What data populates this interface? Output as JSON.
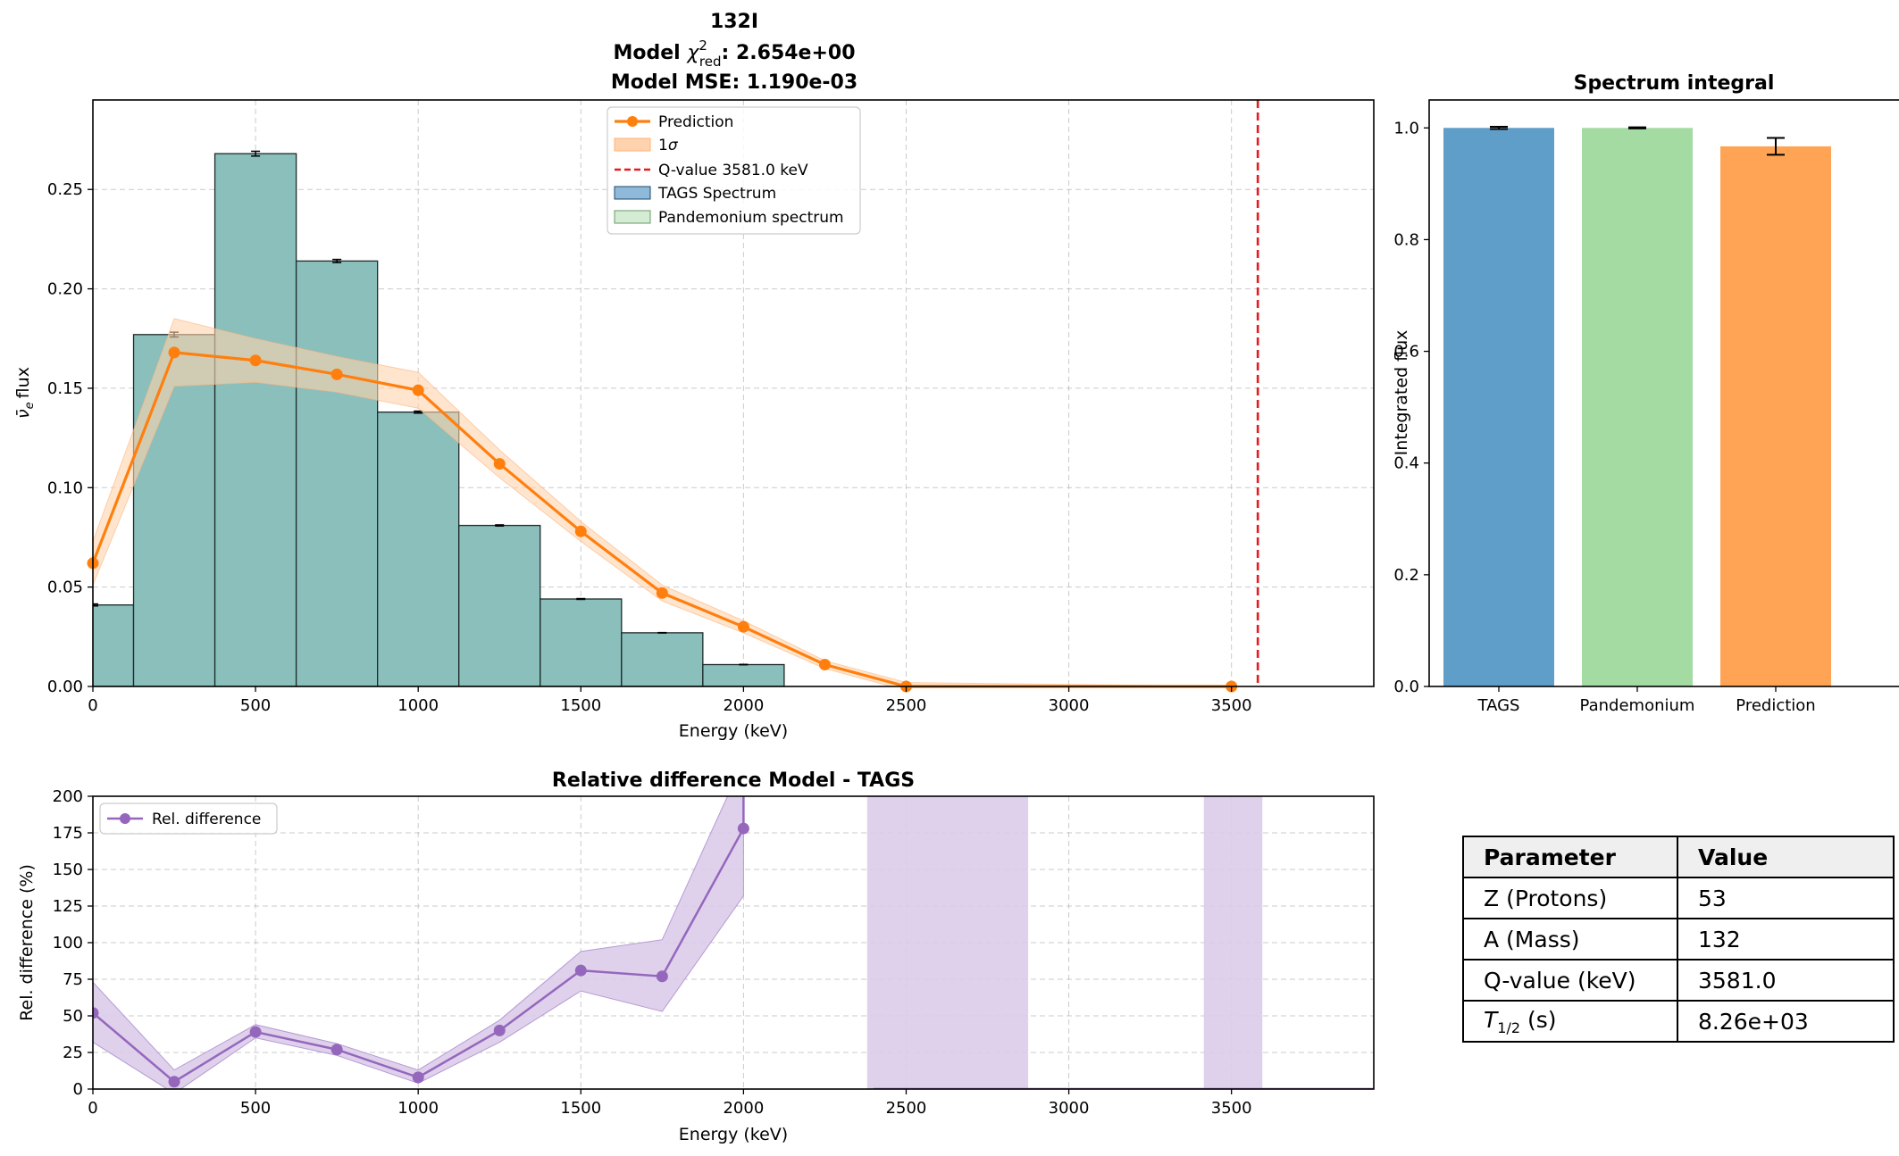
{
  "main": {
    "title_line1": "132I",
    "title_line2_prefix": "Model ",
    "title_line2_value": ": 2.654e+00",
    "title_line3": "Model MSE: 1.190e-03",
    "xlabel": "Energy (keV)",
    "ylabel": "flux",
    "legend": {
      "prediction": "Prediction",
      "sigma": "1",
      "qvalue": "Q-value 3581.0 keV",
      "tags": "TAGS Spectrum",
      "pandemonium": "Pandemonium spectrum"
    }
  },
  "bars": {
    "title": "Spectrum integral",
    "ylabel": "Integrated flux"
  },
  "rel": {
    "title": "Relative difference Model - TAGS",
    "xlabel": "Energy (keV)",
    "ylabel": "Rel. difference (%)",
    "legend": "Rel. difference"
  },
  "table": {
    "headers": [
      "Parameter",
      "Value"
    ],
    "rows": [
      {
        "param": "Z (Protons)",
        "value": "53"
      },
      {
        "param": "A (Mass)",
        "value": "132"
      },
      {
        "param": "Q-value (keV)",
        "value": "3581.0"
      },
      {
        "param_html": "T1/2 (s)",
        "value": "8.26e+03"
      }
    ]
  },
  "colors": {
    "prediction": "#ff7f0e",
    "band": "#ffd3ad",
    "qvalue": "#e41a1c",
    "tags": "#1f77b4",
    "pandemonium": "#98df8a",
    "overlap": "#8abfbb",
    "rel": "#9467bd",
    "relband": "#dccce9",
    "bar_tags": "#5f9ec9",
    "bar_pand": "#a3dba3",
    "bar_pred": "#ffa454"
  },
  "chart_data": [
    {
      "type": "line",
      "name": "spectrum",
      "xlim": [
        0,
        3937.5
      ],
      "ylim": [
        0,
        0.295
      ],
      "xticks": [
        0,
        500,
        1000,
        1500,
        2000,
        2500,
        3000,
        3500
      ],
      "yticks": [
        0.0,
        0.05,
        0.1,
        0.15,
        0.2,
        0.25
      ],
      "bin_width": 250,
      "bin_centers": [
        0,
        250,
        500,
        750,
        1000,
        1250,
        1500,
        1750,
        2000,
        2250,
        2500,
        2750,
        3000,
        3250,
        3500,
        3750
      ],
      "tags_values": [
        0.041,
        0.177,
        0.268,
        0.214,
        0.138,
        0.081,
        0.044,
        0.027,
        0.011,
        0,
        0,
        0,
        0,
        0,
        0,
        0
      ],
      "tags_err": [
        0.0005,
        0.0012,
        0.0012,
        0.0008,
        0.0005,
        0.0003,
        0.0002,
        0.0001,
        0.0001,
        0,
        0,
        0,
        0,
        0,
        0,
        0
      ],
      "prediction_x": [
        0,
        250,
        500,
        750,
        1000,
        1250,
        1500,
        1750,
        2000,
        2250,
        2500,
        3500
      ],
      "prediction_y": [
        0.062,
        0.168,
        0.164,
        0.157,
        0.149,
        0.112,
        0.078,
        0.047,
        0.03,
        0.011,
        0.0,
        0.0
      ],
      "prediction_sigma": [
        0.011,
        0.017,
        0.011,
        0.009,
        0.009,
        0.007,
        0.005,
        0.004,
        0.003,
        0.002,
        0.002,
        0.0
      ],
      "qvalue": 3581.0
    },
    {
      "type": "bar",
      "name": "integral",
      "categories": [
        "TAGS",
        "Pandemonium",
        "Prediction"
      ],
      "values": [
        1.0,
        1.0,
        0.967
      ],
      "errors": [
        0.002,
        0.001,
        0.015
      ],
      "ylim": [
        0,
        1.05
      ],
      "yticks": [
        0.0,
        0.2,
        0.4,
        0.6,
        0.8,
        1.0
      ]
    },
    {
      "type": "line",
      "name": "reldiff",
      "xlim": [
        0,
        3937.5
      ],
      "ylim": [
        0,
        200
      ],
      "xticks": [
        0,
        500,
        1000,
        1500,
        2000,
        2500,
        3000,
        3500
      ],
      "yticks": [
        0,
        25,
        50,
        75,
        100,
        125,
        150,
        175,
        200
      ],
      "x": [
        0,
        250,
        500,
        750,
        1000,
        1250,
        1500,
        1750,
        2000,
        2000
      ],
      "y": [
        52,
        5,
        39,
        27,
        8,
        40,
        81,
        77,
        178,
        260
      ],
      "band_low": [
        32,
        -3,
        35,
        23,
        4,
        32,
        67,
        53,
        132,
        132
      ],
      "band_high": [
        73,
        13,
        44,
        31,
        13,
        47,
        94,
        102,
        224,
        290
      ],
      "extra_bands": [
        [
          2380,
          2875
        ],
        [
          3415,
          3595
        ]
      ]
    }
  ]
}
